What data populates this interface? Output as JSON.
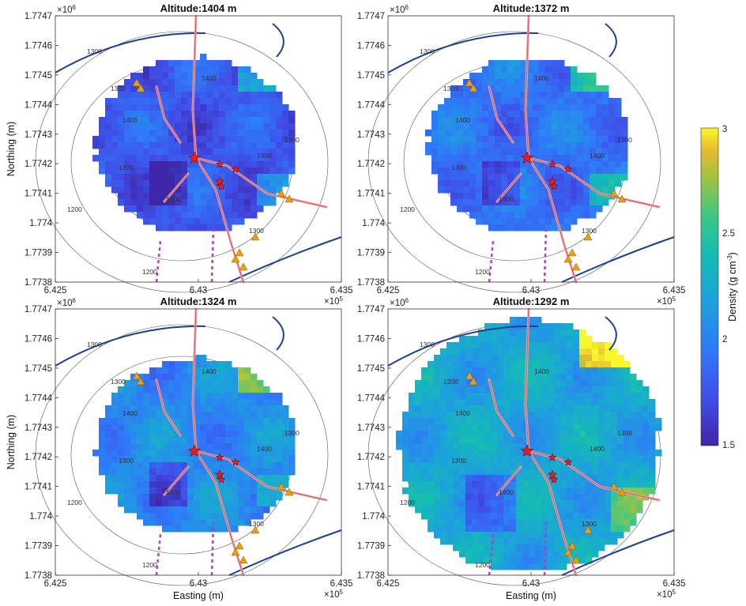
{
  "chart_data": {
    "type": "heatmap",
    "panels": [
      {
        "title": "Altitude:1404 m",
        "mean_density": 1.78,
        "extent": "circle"
      },
      {
        "title": "Altitude:1372 m",
        "mean_density": 1.92,
        "extent": "circle"
      },
      {
        "title": "Altitude:1324 m",
        "mean_density": 2.05,
        "extent": "circle"
      },
      {
        "title": "Altitude:1292 m",
        "mean_density": 2.22,
        "extent": "wide"
      }
    ],
    "xlabel": "Easting (m)",
    "ylabel": "Northing (m)",
    "x_ticks": [
      "6.425",
      "6.43",
      "6.435"
    ],
    "x_exponent": "×10",
    "x_exponent_power": "5",
    "y_ticks": [
      "1.7747",
      "1.7746",
      "1.7745",
      "1.7744",
      "1.7743",
      "1.7742",
      "1.7741",
      "1.774",
      "1.7739",
      "1.7738"
    ],
    "y_exponent": "×10",
    "y_exponent_power": "6",
    "xlim": [
      642500,
      643500
    ],
    "ylim": [
      1773800,
      1774700
    ],
    "contour_labels": [
      "1300",
      "1300",
      "1400",
      "1400",
      "1400",
      "1300",
      "1300",
      "1400",
      "1200",
      "1300",
      "1200"
    ],
    "colorbar": {
      "label": "Density (g cm",
      "label_sup": "-3",
      "label_end": ")",
      "ticks": [
        "3",
        "2.5",
        "2",
        "1.5"
      ],
      "range": [
        1.5,
        3
      ],
      "colormap": "parula"
    },
    "colors": {
      "fault_line": "#1f3f8f",
      "fissure": "#f2a7a0",
      "fissure_core": "#d05070",
      "road": "#b040c0",
      "vent": "#e8a010",
      "crater_star": "#e02020"
    }
  }
}
